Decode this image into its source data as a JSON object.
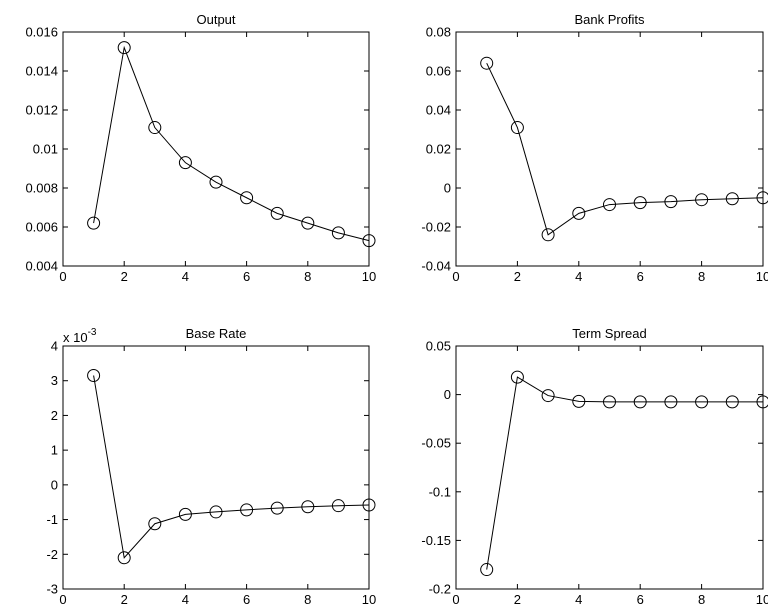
{
  "chart_data": [
    {
      "type": "line",
      "title": "Output",
      "x": [
        1,
        2,
        3,
        4,
        5,
        6,
        7,
        8,
        9,
        10
      ],
      "series": [
        {
          "values": [
            0.0062,
            0.0152,
            0.0111,
            0.0093,
            0.0083,
            0.0075,
            0.0067,
            0.0062,
            0.0057,
            0.0053
          ]
        }
      ],
      "xlim": [
        0,
        10
      ],
      "ylim": [
        0.004,
        0.016
      ],
      "xticks": [
        0,
        2,
        4,
        6,
        8,
        10
      ],
      "xtick_labels": [
        "0",
        "2",
        "4",
        "6",
        "8",
        "10"
      ],
      "yticks": [
        0.004,
        0.006,
        0.008,
        0.01,
        0.012,
        0.014,
        0.016
      ],
      "ytick_labels": [
        "0.004",
        "0.006",
        "0.008",
        "0.01",
        "0.012",
        "0.014",
        "0.016"
      ],
      "marker": "circle",
      "grid": false
    },
    {
      "type": "line",
      "title": "Bank Profits",
      "x": [
        1,
        2,
        3,
        4,
        5,
        6,
        7,
        8,
        9,
        10
      ],
      "series": [
        {
          "values": [
            0.064,
            0.031,
            -0.024,
            -0.013,
            -0.0085,
            -0.0075,
            -0.007,
            -0.006,
            -0.0055,
            -0.005
          ]
        }
      ],
      "xlim": [
        0,
        10
      ],
      "ylim": [
        -0.04,
        0.08
      ],
      "xticks": [
        0,
        2,
        4,
        6,
        8,
        10
      ],
      "xtick_labels": [
        "0",
        "2",
        "4",
        "6",
        "8",
        "10"
      ],
      "yticks": [
        -0.04,
        -0.02,
        0,
        0.02,
        0.04,
        0.06,
        0.08
      ],
      "ytick_labels": [
        "-0.04",
        "-0.02",
        "0",
        "0.02",
        "0.04",
        "0.06",
        "0.08"
      ],
      "marker": "circle",
      "grid": false
    },
    {
      "type": "line",
      "title": "Base Rate",
      "exponent_label": "x 10",
      "exponent_power": "-3",
      "x": [
        1,
        2,
        3,
        4,
        5,
        6,
        7,
        8,
        9,
        10
      ],
      "series": [
        {
          "values": [
            3.15,
            -2.1,
            -1.12,
            -0.85,
            -0.78,
            -0.72,
            -0.67,
            -0.63,
            -0.6,
            -0.58
          ]
        }
      ],
      "xlim": [
        0,
        10
      ],
      "ylim": [
        -3,
        4
      ],
      "xticks": [
        0,
        2,
        4,
        6,
        8,
        10
      ],
      "xtick_labels": [
        "0",
        "2",
        "4",
        "6",
        "8",
        "10"
      ],
      "yticks": [
        -3,
        -2,
        -1,
        0,
        1,
        2,
        3,
        4
      ],
      "ytick_labels": [
        "-3",
        "-2",
        "-1",
        "0",
        "1",
        "2",
        "3",
        "4"
      ],
      "marker": "circle",
      "grid": false
    },
    {
      "type": "line",
      "title": "Term Spread",
      "x": [
        1,
        2,
        3,
        4,
        5,
        6,
        7,
        8,
        9,
        10
      ],
      "series": [
        {
          "values": [
            -0.18,
            0.018,
            -0.001,
            -0.007,
            -0.0075,
            -0.0075,
            -0.0075,
            -0.0075,
            -0.0075,
            -0.0075
          ]
        }
      ],
      "xlim": [
        0,
        10
      ],
      "ylim": [
        -0.2,
        0.05
      ],
      "xticks": [
        0,
        2,
        4,
        6,
        8,
        10
      ],
      "xtick_labels": [
        "0",
        "2",
        "4",
        "6",
        "8",
        "10"
      ],
      "yticks": [
        -0.2,
        -0.15,
        -0.1,
        -0.05,
        0,
        0.05
      ],
      "ytick_labels": [
        "-0.2",
        "-0.15",
        "-0.1",
        "-0.05",
        "0",
        "0.05"
      ],
      "marker": "circle",
      "grid": false
    }
  ]
}
